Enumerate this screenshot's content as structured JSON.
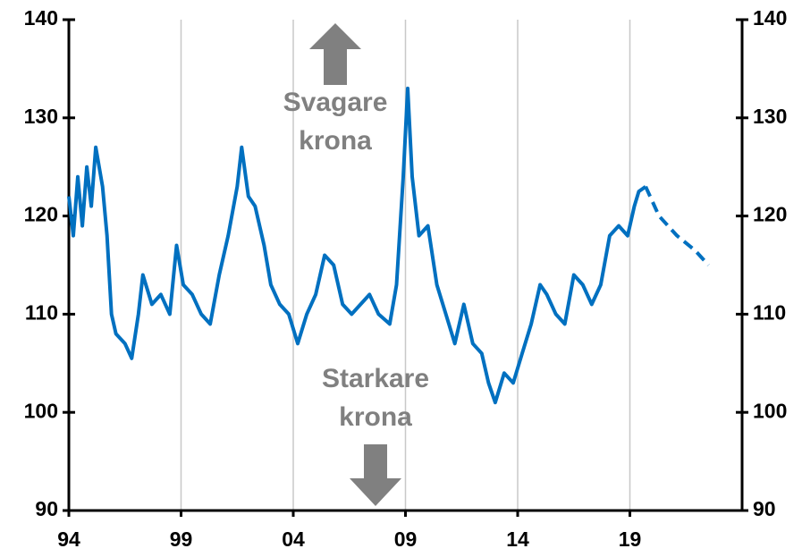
{
  "chart_data": {
    "type": "line",
    "xlim": [
      1994,
      2024
    ],
    "xticks": [
      {
        "value": 1994,
        "label": "94"
      },
      {
        "value": 1999,
        "label": "99"
      },
      {
        "value": 2004,
        "label": "04"
      },
      {
        "value": 2009,
        "label": "09"
      },
      {
        "value": 2014,
        "label": "14"
      },
      {
        "value": 2019,
        "label": "19"
      }
    ],
    "ylim": [
      90,
      140
    ],
    "yticks": [
      90,
      100,
      110,
      120,
      130,
      140
    ],
    "y2lim": [
      90,
      140
    ],
    "y2ticks": [
      90,
      100,
      110,
      120,
      130,
      140
    ],
    "grid": "x",
    "series": [
      {
        "color": "#0070c0",
        "dash": false,
        "x": [
          1994.0,
          1994.2,
          1994.4,
          1994.6,
          1994.8,
          1995.0,
          1995.2,
          1995.5,
          1995.7,
          1995.9,
          1996.1,
          1996.5,
          1996.8,
          1997.1,
          1997.3,
          1997.7,
          1998.1,
          1998.5,
          1998.8,
          1999.1,
          1999.5,
          1999.9,
          2000.3,
          2000.7,
          2001.1,
          2001.5,
          2001.7,
          2002.0,
          2002.3,
          2002.7,
          2003.0,
          2003.4,
          2003.8,
          2004.2,
          2004.6,
          2005.0,
          2005.4,
          2005.8,
          2006.2,
          2006.6,
          2007.0,
          2007.4,
          2007.8,
          2008.3,
          2008.6,
          2008.9,
          2009.1,
          2009.3,
          2009.6,
          2010.0,
          2010.4,
          2010.8,
          2011.2,
          2011.6,
          2012.0,
          2012.4,
          2012.7,
          2013.0,
          2013.4,
          2013.8,
          2014.2,
          2014.6,
          2015.0,
          2015.3,
          2015.7,
          2016.1,
          2016.5,
          2016.9,
          2017.3,
          2017.7,
          2018.1,
          2018.5,
          2018.9,
          2019.2,
          2019.4,
          2019.7
        ],
        "values": [
          122,
          118,
          124,
          119,
          125,
          121,
          127,
          123,
          118,
          110,
          108,
          107,
          105.5,
          110,
          114,
          111,
          112,
          110,
          117,
          113,
          112,
          110,
          109,
          114,
          118,
          123,
          127,
          122,
          121,
          117,
          113,
          111,
          110,
          107,
          110,
          112,
          116,
          115,
          111,
          110,
          111,
          112,
          110,
          109,
          113,
          124,
          133,
          124,
          118,
          119,
          113,
          110,
          107,
          111,
          107,
          106,
          103,
          101,
          104,
          103,
          106,
          109,
          113,
          112,
          110,
          109,
          114,
          113,
          111,
          113,
          118,
          119,
          118,
          121,
          122.5,
          123
        ]
      },
      {
        "color": "#0070c0",
        "dash": true,
        "x": [
          2019.7,
          2020.3,
          2021.1,
          2021.9,
          2022.5
        ],
        "values": [
          123,
          120,
          118,
          116.5,
          115
        ]
      }
    ],
    "annotations": [
      {
        "lines": [
          "Svagare",
          "krona"
        ],
        "arrow": "up"
      },
      {
        "lines": [
          "Starkare",
          "krona"
        ],
        "arrow": "down"
      }
    ]
  }
}
